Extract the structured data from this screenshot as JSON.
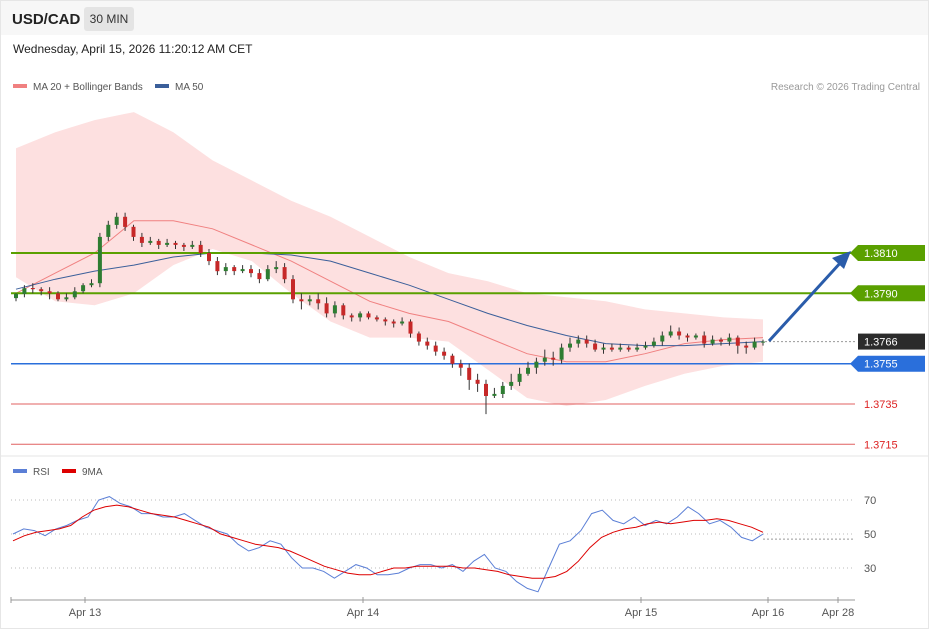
{
  "header": {
    "symbol": "USD/CAD",
    "timeframe": "30 MIN",
    "datetime": "Wednesday, April 15, 2026 11:20:12 AM CET"
  },
  "legend": {
    "ma20_label": "MA 20 + Bollinger Bands",
    "ma50_label": "MA 50",
    "credit": "Research © 2026 Trading Central",
    "ma20_color": "#f08080",
    "ma50_color": "#3b5f9a"
  },
  "rsi_legend": {
    "rsi_label": "RSI",
    "ma9_label": "9MA",
    "rsi_color": "#5b7fd6",
    "ma9_color": "#dd0000"
  },
  "levels": [
    {
      "value": 1.381,
      "label": "1.3810",
      "kind": "resistance",
      "color": "#5aa000"
    },
    {
      "value": 1.379,
      "label": "1.3790",
      "kind": "resistance",
      "color": "#5aa000"
    },
    {
      "value": 1.3766,
      "label": "1.3766",
      "kind": "current",
      "color": "#2b2b2b"
    },
    {
      "value": 1.3755,
      "label": "1.3755",
      "kind": "pivot",
      "color": "#2a6fdb"
    },
    {
      "value": 1.3735,
      "label": "1.3735",
      "kind": "support",
      "color": "#e06060"
    },
    {
      "value": 1.3715,
      "label": "1.3715",
      "kind": "support",
      "color": "#e06060"
    }
  ],
  "xaxis_labels": [
    "Apr 13",
    "Apr 14",
    "Apr 15",
    "Apr 16",
    "Apr 28"
  ],
  "rsi_ticks": [
    "70",
    "50",
    "30"
  ],
  "chart_data": {
    "type": "candlestick",
    "price_range": [
      1.3708,
      1.3888
    ],
    "candles": [
      [
        1.37876,
        1.37897,
        1.3786,
        1.379
      ],
      [
        1.37896,
        1.37925,
        1.3788,
        1.3794
      ],
      [
        1.37926,
        1.3792,
        1.379,
        1.3795
      ],
      [
        1.3792,
        1.3791,
        1.3789,
        1.3793
      ],
      [
        1.3791,
        1.379,
        1.3787,
        1.3793
      ],
      [
        1.379,
        1.3787,
        1.3786,
        1.3791
      ],
      [
        1.3787,
        1.3788,
        1.3786,
        1.379
      ],
      [
        1.3788,
        1.3791,
        1.3787,
        1.3793
      ],
      [
        1.3791,
        1.3794,
        1.379,
        1.3795
      ],
      [
        1.3794,
        1.3795,
        1.3793,
        1.3797
      ],
      [
        1.3795,
        1.3818,
        1.3793,
        1.382
      ],
      [
        1.3818,
        1.3824,
        1.3816,
        1.3826
      ],
      [
        1.3824,
        1.3828,
        1.3822,
        1.383
      ],
      [
        1.3828,
        1.3823,
        1.3821,
        1.383
      ],
      [
        1.3823,
        1.3818,
        1.3816,
        1.3824
      ],
      [
        1.3818,
        1.3815,
        1.3813,
        1.382
      ],
      [
        1.3815,
        1.3816,
        1.3814,
        1.3818
      ],
      [
        1.3816,
        1.3814,
        1.3812,
        1.3817
      ],
      [
        1.3814,
        1.3815,
        1.3813,
        1.3817
      ],
      [
        1.3815,
        1.3814,
        1.3812,
        1.3816
      ],
      [
        1.3814,
        1.3813,
        1.3811,
        1.3815
      ],
      [
        1.3813,
        1.3814,
        1.3812,
        1.3816
      ],
      [
        1.3814,
        1.381,
        1.3808,
        1.3816
      ],
      [
        1.381,
        1.3806,
        1.3804,
        1.3812
      ],
      [
        1.3806,
        1.3801,
        1.3799,
        1.3808
      ],
      [
        1.3801,
        1.3803,
        1.3799,
        1.3805
      ],
      [
        1.3803,
        1.3801,
        1.3799,
        1.3804
      ],
      [
        1.3801,
        1.3802,
        1.38,
        1.3804
      ],
      [
        1.3802,
        1.38,
        1.3798,
        1.3804
      ],
      [
        1.38,
        1.3797,
        1.3795,
        1.3802
      ],
      [
        1.3797,
        1.3802,
        1.3796,
        1.3804
      ],
      [
        1.3802,
        1.3803,
        1.38,
        1.3806
      ],
      [
        1.3803,
        1.3797,
        1.3795,
        1.3805
      ],
      [
        1.3797,
        1.3787,
        1.3785,
        1.3799
      ],
      [
        1.3787,
        1.3786,
        1.3782,
        1.379
      ],
      [
        1.3786,
        1.3787,
        1.3784,
        1.3789
      ],
      [
        1.3787,
        1.3785,
        1.3782,
        1.379
      ],
      [
        1.3785,
        1.378,
        1.3778,
        1.3788
      ],
      [
        1.378,
        1.3784,
        1.3778,
        1.3786
      ],
      [
        1.3784,
        1.3779,
        1.3777,
        1.3785
      ],
      [
        1.3779,
        1.3778,
        1.3776,
        1.378
      ],
      [
        1.3778,
        1.378,
        1.3776,
        1.3781
      ],
      [
        1.378,
        1.3778,
        1.3777,
        1.3781
      ],
      [
        1.3778,
        1.3777,
        1.3776,
        1.3779
      ],
      [
        1.3777,
        1.3776,
        1.3774,
        1.3778
      ],
      [
        1.3776,
        1.3775,
        1.3773,
        1.3777
      ],
      [
        1.3775,
        1.3776,
        1.3774,
        1.3778
      ],
      [
        1.3776,
        1.377,
        1.3768,
        1.3777
      ],
      [
        1.377,
        1.3766,
        1.3764,
        1.3771
      ],
      [
        1.3766,
        1.3764,
        1.3762,
        1.3768
      ],
      [
        1.3764,
        1.3761,
        1.3759,
        1.3766
      ],
      [
        1.3761,
        1.3759,
        1.3757,
        1.3763
      ],
      [
        1.3759,
        1.3755,
        1.3753,
        1.376
      ],
      [
        1.3755,
        1.3753,
        1.3749,
        1.3757
      ],
      [
        1.3753,
        1.3747,
        1.3742,
        1.3755
      ],
      [
        1.3747,
        1.3745,
        1.3741,
        1.375
      ],
      [
        1.3745,
        1.3739,
        1.373,
        1.3747
      ],
      [
        1.3739,
        1.374,
        1.3738,
        1.3743
      ],
      [
        1.374,
        1.3744,
        1.3738,
        1.3746
      ],
      [
        1.3744,
        1.3746,
        1.3742,
        1.375
      ],
      [
        1.3746,
        1.375,
        1.3744,
        1.3753
      ],
      [
        1.375,
        1.3753,
        1.3749,
        1.3756
      ],
      [
        1.3753,
        1.3756,
        1.375,
        1.3758
      ],
      [
        1.3756,
        1.3758,
        1.3754,
        1.3762
      ],
      [
        1.3758,
        1.3757,
        1.3754,
        1.3761
      ],
      [
        1.3757,
        1.3763,
        1.3755,
        1.3765
      ],
      [
        1.3763,
        1.3765,
        1.3761,
        1.3768
      ],
      [
        1.3765,
        1.3767,
        1.3763,
        1.3769
      ],
      [
        1.3767,
        1.3765,
        1.3763,
        1.3769
      ],
      [
        1.3765,
        1.3762,
        1.3761,
        1.3767
      ],
      [
        1.3762,
        1.3763,
        1.376,
        1.3765
      ],
      [
        1.3763,
        1.3762,
        1.3761,
        1.3765
      ],
      [
        1.3762,
        1.3763,
        1.3761,
        1.3765
      ],
      [
        1.3763,
        1.3762,
        1.3761,
        1.3764
      ],
      [
        1.3762,
        1.3763,
        1.3761,
        1.3765
      ],
      [
        1.3763,
        1.3764,
        1.3762,
        1.3766
      ],
      [
        1.3764,
        1.3766,
        1.3763,
        1.3768
      ],
      [
        1.3766,
        1.3769,
        1.3764,
        1.3771
      ],
      [
        1.3769,
        1.3771,
        1.3768,
        1.3774
      ],
      [
        1.3771,
        1.3769,
        1.3767,
        1.3773
      ],
      [
        1.3769,
        1.3768,
        1.3766,
        1.377
      ],
      [
        1.3768,
        1.3769,
        1.3767,
        1.377
      ],
      [
        1.3769,
        1.3765,
        1.3763,
        1.3771
      ],
      [
        1.3765,
        1.3767,
        1.3764,
        1.3769
      ],
      [
        1.3767,
        1.3766,
        1.3764,
        1.3768
      ],
      [
        1.3766,
        1.3768,
        1.3764,
        1.377
      ],
      [
        1.3768,
        1.3764,
        1.376,
        1.3769
      ],
      [
        1.3764,
        1.3763,
        1.376,
        1.3766
      ],
      [
        1.3763,
        1.3766,
        1.3762,
        1.3768
      ],
      [
        1.3766,
        1.3766,
        1.3764,
        1.3767
      ]
    ],
    "bollinger_upper": [
      1.3862,
      1.387,
      1.3876,
      1.388,
      1.387,
      1.3856,
      1.3846,
      1.3836,
      1.3828,
      1.3818,
      1.3808,
      1.38,
      1.3796,
      1.379,
      1.3788,
      1.3786,
      1.3782,
      1.378,
      1.3778,
      1.3777
    ],
    "bollinger_lower": [
      1.3798,
      1.3786,
      1.3784,
      1.379,
      1.3804,
      1.3812,
      1.3806,
      1.379,
      1.3776,
      1.3768,
      1.3768,
      1.3766,
      1.3752,
      1.3738,
      1.3734,
      1.3737,
      1.3744,
      1.375,
      1.3754,
      1.3756
    ],
    "ma20": [
      1.379,
      1.38,
      1.381,
      1.3826,
      1.3826,
      1.3822,
      1.3814,
      1.3806,
      1.3796,
      1.3786,
      1.378,
      1.3776,
      1.3768,
      1.376,
      1.3756,
      1.3756,
      1.376,
      1.3765,
      1.3767,
      1.3768
    ],
    "ma50": [
      1.3792,
      1.3797,
      1.3801,
      1.3804,
      1.3808,
      1.381,
      1.381,
      1.3809,
      1.3806,
      1.38,
      1.3794,
      1.3787,
      1.378,
      1.3774,
      1.3769,
      1.3765,
      1.3764,
      1.3764,
      1.3765,
      1.3766
    ],
    "rsi": [
      50,
      53,
      52,
      49,
      53,
      55,
      58,
      60,
      70,
      72,
      68,
      66,
      62,
      62,
      60,
      60,
      62,
      58,
      54,
      52,
      50,
      44,
      40,
      42,
      46,
      44,
      36,
      30,
      30,
      28,
      24,
      28,
      32,
      30,
      26,
      26,
      27,
      30,
      32,
      32,
      30,
      32,
      28,
      34,
      38,
      30,
      28,
      22,
      18,
      16,
      30,
      44,
      46,
      52,
      62,
      64,
      58,
      56,
      60,
      55,
      58,
      56,
      60,
      66,
      62,
      56,
      58,
      54,
      48,
      46,
      50
    ],
    "rsi_ma9": [
      46,
      49,
      51,
      52,
      53,
      55,
      60,
      64,
      66,
      67,
      66,
      64,
      62,
      61,
      60,
      58,
      56,
      54,
      50,
      48,
      46,
      44,
      43,
      42,
      40,
      37,
      34,
      31,
      29,
      27,
      26,
      26,
      28,
      30,
      30,
      31,
      31,
      31,
      31,
      30,
      30,
      29,
      28,
      26,
      25,
      24,
      24,
      25,
      28,
      34,
      42,
      48,
      51,
      53,
      54,
      56,
      57,
      56,
      57,
      58,
      58,
      59,
      58,
      56,
      54,
      51
    ]
  }
}
